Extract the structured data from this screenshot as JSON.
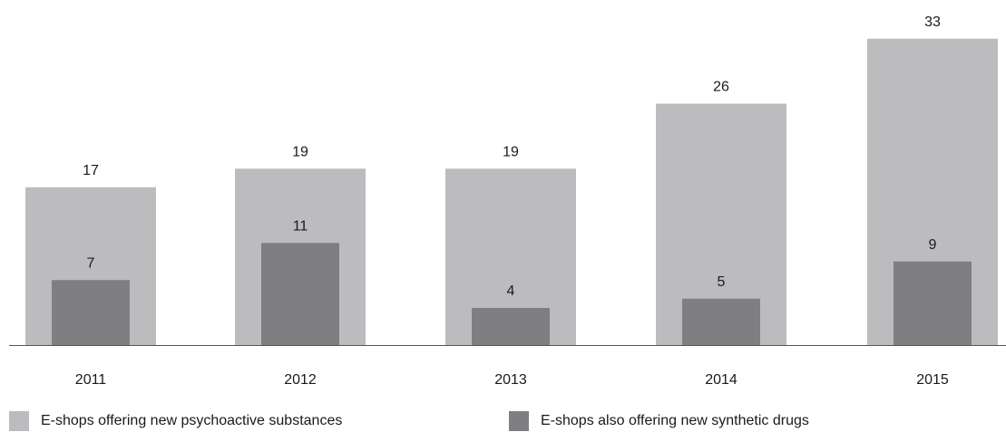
{
  "chart_data": {
    "type": "bar",
    "categories": [
      "2011",
      "2012",
      "2013",
      "2014",
      "2015"
    ],
    "series": [
      {
        "name": "E-shops offering new psychoactive substances",
        "values": [
          17,
          19,
          19,
          26,
          33
        ],
        "color": "#bcbcbf"
      },
      {
        "name": "E-shops also offering new synthetic drugs",
        "values": [
          7,
          11,
          4,
          5,
          9
        ],
        "color": "#7f7f82"
      }
    ],
    "ylim": [
      0,
      35
    ],
    "grid": false,
    "legend_position": "bottom",
    "axis_color": "#555555"
  }
}
